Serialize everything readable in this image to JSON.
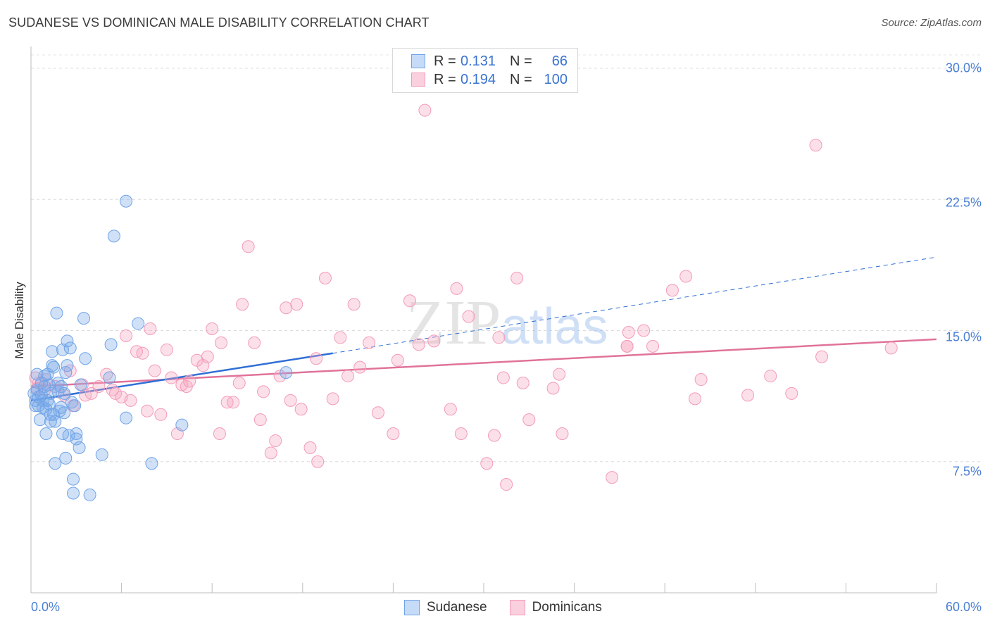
{
  "header": {
    "title": "SUDANESE VS DOMINICAN MALE DISABILITY CORRELATION CHART",
    "source": "Source: ZipAtlas.com"
  },
  "watermark": "ZIPatlas",
  "colors": {
    "blue": "#6fa3e8",
    "blue_line": "#2f6fd6",
    "pink": "#f39bb8",
    "pink_line": "#e0739a",
    "tick_text": "#4a7fd4"
  },
  "legend": [
    {
      "r_label": "R =",
      "r_value": "0.131",
      "n_label": "N =",
      "n_value": "66"
    },
    {
      "r_label": "R =",
      "r_value": "0.194",
      "n_label": "N =",
      "n_value": "100"
    }
  ],
  "bottom_legend": [
    "Sudanese",
    "Dominicans"
  ],
  "chart_data": {
    "type": "scatter",
    "title": "SUDANESE VS DOMINICAN MALE DISABILITY CORRELATION CHART",
    "xlabel": "",
    "ylabel": "Male Disability",
    "xlim": [
      0,
      60
    ],
    "ylim": [
      0,
      31.5
    ],
    "x_tick_labels": [
      "0.0%",
      "60.0%"
    ],
    "y_ticks": [
      7.5,
      15.0,
      22.5,
      30.0
    ],
    "y_tick_labels": [
      "7.5%",
      "15.0%",
      "22.5%",
      "30.0%"
    ],
    "grid": true,
    "series": [
      {
        "name": "Sudanese",
        "trend": {
          "x": [
            0,
            20
          ],
          "y": [
            11.0,
            13.7
          ],
          "dashed_to": [
            60,
            19.2
          ]
        },
        "points": [
          [
            0.2,
            11.4
          ],
          [
            0.3,
            11.0
          ],
          [
            0.3,
            10.7
          ],
          [
            0.4,
            12.5
          ],
          [
            0.4,
            11.6
          ],
          [
            0.5,
            11.2
          ],
          [
            0.6,
            9.9
          ],
          [
            0.7,
            12.0
          ],
          [
            0.7,
            11.3
          ],
          [
            0.8,
            11.0
          ],
          [
            0.8,
            10.6
          ],
          [
            0.9,
            12.4
          ],
          [
            1.0,
            10.5
          ],
          [
            1.0,
            9.1
          ],
          [
            1.1,
            12.5
          ],
          [
            1.2,
            10.8
          ],
          [
            1.2,
            11.9
          ],
          [
            1.3,
            10.2
          ],
          [
            1.3,
            9.8
          ],
          [
            1.4,
            13.8
          ],
          [
            1.4,
            13.0
          ],
          [
            1.5,
            12.9
          ],
          [
            1.5,
            10.2
          ],
          [
            1.6,
            7.4
          ],
          [
            1.6,
            9.8
          ],
          [
            1.7,
            16.0
          ],
          [
            1.8,
            12.0
          ],
          [
            1.8,
            11.5
          ],
          [
            1.9,
            10.4
          ],
          [
            2.0,
            11.8
          ],
          [
            2.0,
            10.6
          ],
          [
            2.1,
            13.9
          ],
          [
            2.1,
            9.1
          ],
          [
            2.2,
            11.4
          ],
          [
            2.2,
            10.3
          ],
          [
            2.3,
            7.7
          ],
          [
            2.3,
            12.6
          ],
          [
            2.4,
            14.4
          ],
          [
            2.4,
            13.0
          ],
          [
            2.5,
            9.0
          ],
          [
            2.6,
            14.0
          ],
          [
            2.7,
            10.9
          ],
          [
            2.8,
            6.5
          ],
          [
            2.8,
            5.7
          ],
          [
            2.9,
            10.7
          ],
          [
            3.0,
            9.1
          ],
          [
            3.0,
            8.8
          ],
          [
            3.2,
            8.3
          ],
          [
            3.3,
            11.9
          ],
          [
            3.5,
            15.7
          ],
          [
            3.6,
            13.4
          ],
          [
            3.9,
            5.6
          ],
          [
            4.7,
            7.9
          ],
          [
            5.2,
            12.3
          ],
          [
            5.3,
            14.2
          ],
          [
            5.5,
            20.4
          ],
          [
            6.3,
            22.4
          ],
          [
            6.3,
            10.0
          ],
          [
            7.1,
            15.4
          ],
          [
            8.0,
            7.4
          ],
          [
            10.0,
            9.6
          ],
          [
            16.9,
            12.6
          ],
          [
            0.9,
            11.8
          ],
          [
            1.1,
            11.0
          ],
          [
            0.5,
            10.7
          ],
          [
            1.3,
            11.4
          ]
        ]
      },
      {
        "name": "Dominicans",
        "trend": {
          "x": [
            0,
            60
          ],
          "y": [
            11.8,
            14.5
          ]
        },
        "points": [
          [
            0.3,
            12.3
          ],
          [
            0.4,
            11.7
          ],
          [
            0.5,
            12.0
          ],
          [
            0.9,
            11.6
          ],
          [
            1.0,
            12.2
          ],
          [
            1.6,
            11.8
          ],
          [
            2.2,
            11.3
          ],
          [
            2.6,
            12.7
          ],
          [
            2.8,
            10.7
          ],
          [
            3.4,
            11.9
          ],
          [
            3.6,
            11.3
          ],
          [
            4.0,
            11.4
          ],
          [
            4.5,
            11.8
          ],
          [
            5.0,
            12.5
          ],
          [
            5.4,
            11.6
          ],
          [
            5.6,
            11.4
          ],
          [
            6.0,
            11.2
          ],
          [
            6.3,
            14.7
          ],
          [
            6.6,
            11.0
          ],
          [
            7.0,
            13.8
          ],
          [
            7.4,
            13.7
          ],
          [
            7.7,
            10.4
          ],
          [
            7.9,
            15.1
          ],
          [
            8.2,
            12.7
          ],
          [
            8.6,
            10.2
          ],
          [
            9.0,
            13.9
          ],
          [
            9.3,
            12.3
          ],
          [
            9.7,
            9.1
          ],
          [
            10.0,
            11.9
          ],
          [
            10.3,
            11.8
          ],
          [
            10.5,
            12.1
          ],
          [
            11.0,
            13.3
          ],
          [
            11.4,
            13.0
          ],
          [
            11.7,
            13.5
          ],
          [
            12.0,
            15.1
          ],
          [
            12.5,
            9.1
          ],
          [
            12.6,
            14.3
          ],
          [
            13.0,
            10.9
          ],
          [
            13.4,
            10.9
          ],
          [
            13.8,
            12.0
          ],
          [
            14.0,
            16.5
          ],
          [
            14.4,
            19.8
          ],
          [
            14.8,
            14.3
          ],
          [
            15.2,
            9.9
          ],
          [
            15.4,
            11.5
          ],
          [
            15.9,
            8.0
          ],
          [
            16.2,
            8.7
          ],
          [
            16.5,
            12.4
          ],
          [
            16.9,
            16.3
          ],
          [
            17.2,
            11.0
          ],
          [
            17.6,
            16.5
          ],
          [
            17.9,
            10.5
          ],
          [
            18.5,
            8.3
          ],
          [
            18.9,
            13.4
          ],
          [
            19.0,
            7.5
          ],
          [
            19.5,
            18.0
          ],
          [
            20.0,
            11.1
          ],
          [
            20.5,
            14.6
          ],
          [
            21.0,
            12.4
          ],
          [
            21.4,
            16.5
          ],
          [
            21.8,
            12.9
          ],
          [
            22.4,
            14.3
          ],
          [
            23.0,
            10.3
          ],
          [
            24.0,
            9.1
          ],
          [
            24.3,
            13.3
          ],
          [
            25.1,
            16.7
          ],
          [
            25.7,
            14.2
          ],
          [
            26.1,
            27.6
          ],
          [
            26.7,
            14.4
          ],
          [
            27.8,
            10.5
          ],
          [
            28.2,
            17.4
          ],
          [
            28.5,
            9.1
          ],
          [
            29.0,
            15.8
          ],
          [
            30.2,
            7.4
          ],
          [
            30.7,
            9.0
          ],
          [
            31.0,
            14.6
          ],
          [
            31.3,
            12.3
          ],
          [
            31.5,
            6.2
          ],
          [
            32.2,
            18.0
          ],
          [
            32.6,
            12.0
          ],
          [
            33.0,
            9.9
          ],
          [
            34.6,
            11.7
          ],
          [
            35.0,
            12.5
          ],
          [
            35.2,
            9.1
          ],
          [
            38.5,
            6.6
          ],
          [
            39.5,
            14.1
          ],
          [
            39.6,
            14.9
          ],
          [
            40.6,
            15.0
          ],
          [
            41.2,
            14.1
          ],
          [
            42.5,
            17.3
          ],
          [
            43.4,
            18.1
          ],
          [
            44.0,
            11.1
          ],
          [
            44.4,
            12.2
          ],
          [
            47.5,
            11.3
          ],
          [
            49.0,
            12.4
          ],
          [
            50.4,
            11.4
          ],
          [
            52.0,
            25.6
          ],
          [
            52.4,
            13.5
          ],
          [
            57.0,
            14.0
          ],
          [
            39.5,
            14.1
          ]
        ]
      }
    ]
  }
}
